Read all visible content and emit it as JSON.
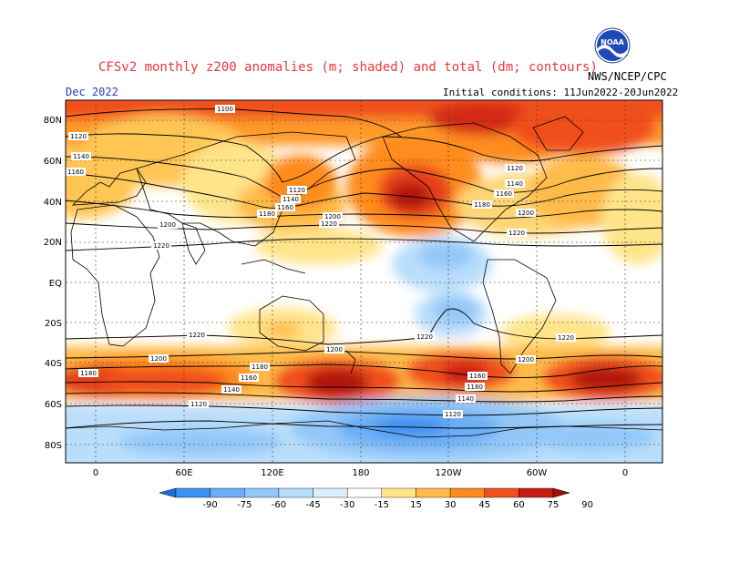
{
  "header": {
    "title": "CFSv2 monthly z200 anomalies (m; shaded) and total (dm; contours)",
    "agency": "NWS/NCEP/CPC",
    "forecast_month": "Dec 2022",
    "initial_conditions": "Initial conditions: 11Jun2022-20Jun2022",
    "logo_text": "NOAA"
  },
  "map": {
    "lat_labels": [
      "80N",
      "60N",
      "40N",
      "20N",
      "EQ",
      "20S",
      "40S",
      "60S",
      "80S"
    ],
    "lon_labels": [
      "0",
      "60E",
      "120E",
      "180",
      "120W",
      "60W",
      "0"
    ],
    "contour_labels": [
      "1100",
      "1120",
      "1140",
      "1160",
      "1180",
      "1200",
      "1220"
    ]
  },
  "colorbar": {
    "ticks": [
      "-90",
      "-75",
      "-60",
      "-45",
      "-30",
      "-15",
      "15",
      "30",
      "45",
      "60",
      "75",
      "90"
    ],
    "colors": [
      "#1a6fe0",
      "#3d8ff0",
      "#6aaef5",
      "#93c7f8",
      "#b9defb",
      "#d9effd",
      "#ffffff",
      "#ffe48a",
      "#ffbb4a",
      "#ff8c1f",
      "#f0501a",
      "#c81e12",
      "#a00f0a"
    ]
  }
}
